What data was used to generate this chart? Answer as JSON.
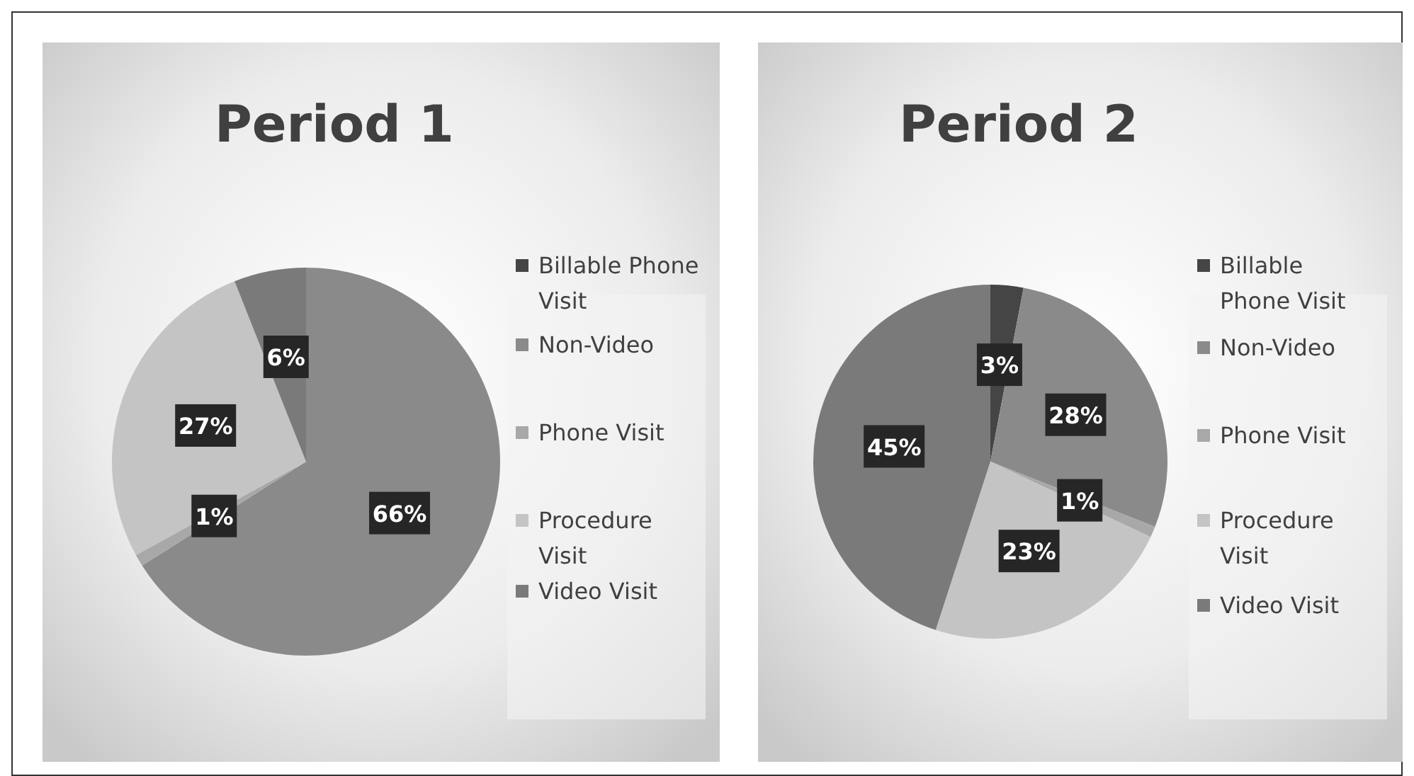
{
  "chart_data": [
    {
      "type": "pie",
      "title": "Period 1",
      "categories": [
        "Billable Phone Visit",
        "Non-Video",
        "Phone Visit",
        "Procedure Visit",
        "Video Visit"
      ],
      "values": [
        0,
        66,
        1,
        27,
        6
      ],
      "value_labels": [
        null,
        "66%",
        "1%",
        "27%",
        "6%"
      ],
      "colors": [
        "#454545",
        "#8a8a8a",
        "#a8a8a8",
        "#c4c4c4",
        "#7a7a7a"
      ],
      "legend": "right"
    },
    {
      "type": "pie",
      "title": "Period 2",
      "categories": [
        "Billable Phone Visit",
        "Non-Video",
        "Phone Visit",
        "Procedure Visit",
        "Video Visit"
      ],
      "values": [
        3,
        28,
        1,
        23,
        45
      ],
      "value_labels": [
        "3%",
        "28%",
        "1%",
        "23%",
        "45%"
      ],
      "colors": [
        "#454545",
        "#8a8a8a",
        "#a8a8a8",
        "#c4c4c4",
        "#7a7a7a"
      ],
      "legend": "right"
    }
  ]
}
